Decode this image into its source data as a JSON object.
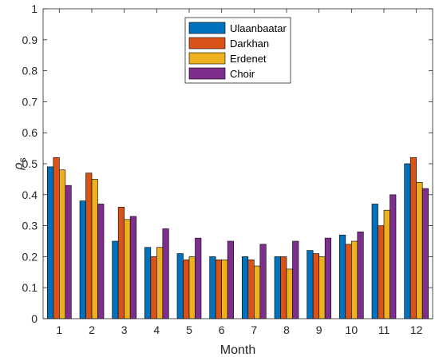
{
  "chart_data": {
    "type": "bar",
    "title": "",
    "xlabel": "Month",
    "ylabel_symbol": "ρ",
    "ylabel_subscript": "s",
    "ylim": [
      0,
      1
    ],
    "yticks": [
      "0",
      "0.1",
      "0.2",
      "0.3",
      "0.4",
      "0.5",
      "0.6",
      "0.7",
      "0.8",
      "0.9",
      "1"
    ],
    "grid": false,
    "legend_position": "top-center",
    "categories": [
      "1",
      "2",
      "3",
      "4",
      "5",
      "6",
      "7",
      "8",
      "9",
      "10",
      "11",
      "12"
    ],
    "series": [
      {
        "name": "Ulaanbaatar",
        "color": "#0072BD",
        "values": [
          0.49,
          0.38,
          0.25,
          0.23,
          0.21,
          0.2,
          0.2,
          0.2,
          0.22,
          0.27,
          0.37,
          0.5
        ]
      },
      {
        "name": "Darkhan",
        "color": "#D95319",
        "values": [
          0.52,
          0.47,
          0.36,
          0.2,
          0.19,
          0.19,
          0.19,
          0.2,
          0.21,
          0.24,
          0.3,
          0.52
        ]
      },
      {
        "name": "Erdenet",
        "color": "#EDB120",
        "values": [
          0.48,
          0.45,
          0.32,
          0.23,
          0.2,
          0.19,
          0.17,
          0.16,
          0.2,
          0.25,
          0.35,
          0.44
        ]
      },
      {
        "name": "Choir",
        "color": "#7E2F8E",
        "values": [
          0.43,
          0.37,
          0.33,
          0.29,
          0.26,
          0.25,
          0.24,
          0.25,
          0.26,
          0.28,
          0.4,
          0.42
        ]
      }
    ]
  }
}
